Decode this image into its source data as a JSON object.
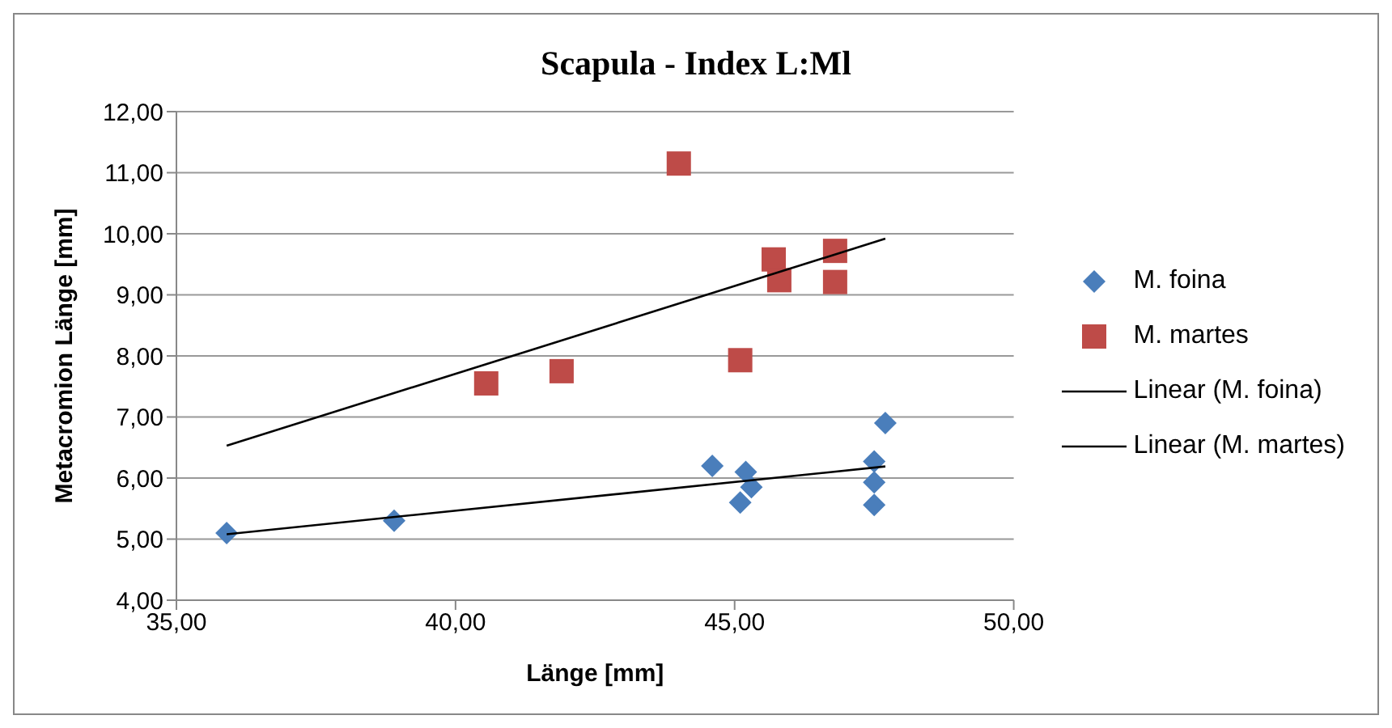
{
  "chart_data": {
    "type": "scatter",
    "title": "Scapula - Index L:Ml",
    "xlabel": "Länge [mm]",
    "ylabel": "Metacromion Länge [mm]",
    "xlim": [
      35,
      50
    ],
    "xticks": [
      {
        "value": 35,
        "label": "35,00"
      },
      {
        "value": 40,
        "label": "40,00"
      },
      {
        "value": 45,
        "label": "45,00"
      },
      {
        "value": 50,
        "label": "50,00"
      }
    ],
    "ylim": [
      4,
      12
    ],
    "yticks": [
      {
        "value": 4,
        "label": "4,00"
      },
      {
        "value": 5,
        "label": "5,00"
      },
      {
        "value": 6,
        "label": "6,00"
      },
      {
        "value": 7,
        "label": "7,00"
      },
      {
        "value": 8,
        "label": "8,00"
      },
      {
        "value": 9,
        "label": "9,00"
      },
      {
        "value": 10,
        "label": "10,00"
      },
      {
        "value": 11,
        "label": "11,00"
      },
      {
        "value": 12,
        "label": "12,00"
      }
    ],
    "grid": "y",
    "legend": "right",
    "series": [
      {
        "name": "M. foina",
        "marker": "diamond",
        "color": "#4a7ebb",
        "x": [
          35.9,
          38.9,
          44.6,
          45.2,
          45.3,
          45.1,
          47.5,
          47.5,
          47.5,
          47.7
        ],
        "values": [
          5.1,
          5.3,
          6.2,
          6.1,
          5.85,
          5.6,
          6.27,
          5.93,
          5.56,
          6.9
        ]
      },
      {
        "name": "M. martes",
        "marker": "square",
        "color": "#be4b48",
        "x": [
          40.55,
          41.9,
          44.0,
          45.1,
          45.7,
          45.8,
          46.8,
          46.8
        ],
        "values": [
          7.55,
          7.75,
          11.15,
          7.93,
          9.58,
          9.24,
          9.72,
          9.21
        ]
      },
      {
        "name": "Linear (M. foina)",
        "type": "line",
        "marker": "none",
        "color": "#000000",
        "x": [
          35.9,
          47.7
        ],
        "values": [
          5.08,
          6.19
        ]
      },
      {
        "name": "Linear (M. martes)",
        "type": "line",
        "marker": "none",
        "color": "#000000",
        "x": [
          35.9,
          47.7
        ],
        "values": [
          6.53,
          9.92
        ]
      }
    ]
  }
}
